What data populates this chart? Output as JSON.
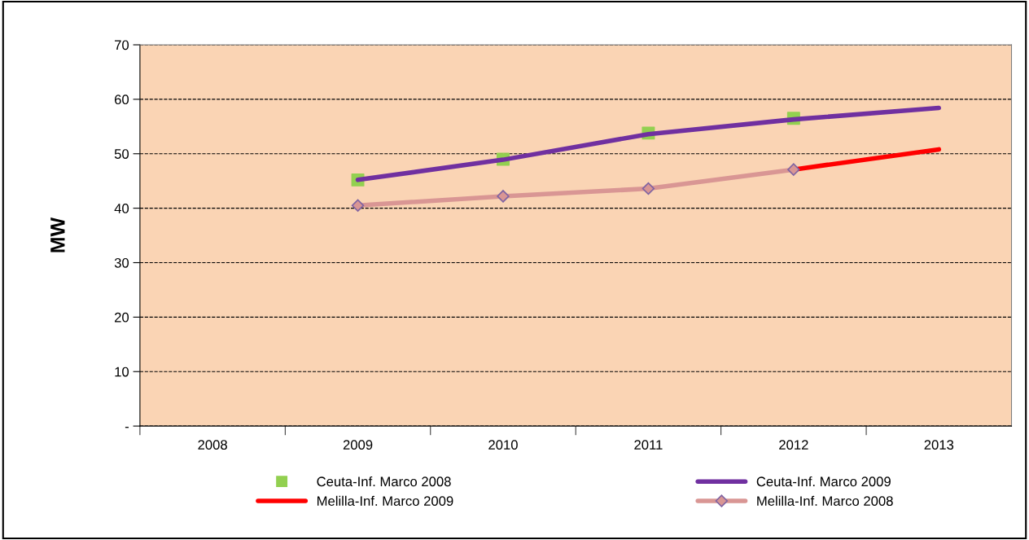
{
  "chart_data": {
    "type": "line",
    "ylabel": "MW",
    "categories": [
      "2008",
      "2009",
      "2010",
      "2011",
      "2012",
      "2013"
    ],
    "ylim": [
      0,
      70
    ],
    "yticks": [
      {
        "value": 0,
        "label": "-"
      },
      10,
      20,
      30,
      40,
      50,
      60,
      70
    ],
    "grid": "y",
    "legend": "bottom",
    "series": [
      {
        "name": "Ceuta-Inf. Marco 2008",
        "type": "scatter",
        "marker": "square",
        "color": "#92d050",
        "values": [
          null,
          45.2,
          49.0,
          53.8,
          56.5,
          null
        ]
      },
      {
        "name": "Ceuta-Inf. Marco 2009",
        "color": "#7030a0",
        "values": [
          null,
          45.2,
          48.9,
          53.6,
          56.3,
          58.4
        ]
      },
      {
        "name": "Melilla-Inf. Marco 2009",
        "color": "#ff0000",
        "values": [
          null,
          null,
          null,
          null,
          47.1,
          50.8
        ]
      },
      {
        "name": "Melilla-Inf. Marco 2008",
        "color": "#d99694",
        "marker": "diamond",
        "values": [
          null,
          40.5,
          42.2,
          43.6,
          47.1,
          null
        ]
      }
    ]
  }
}
